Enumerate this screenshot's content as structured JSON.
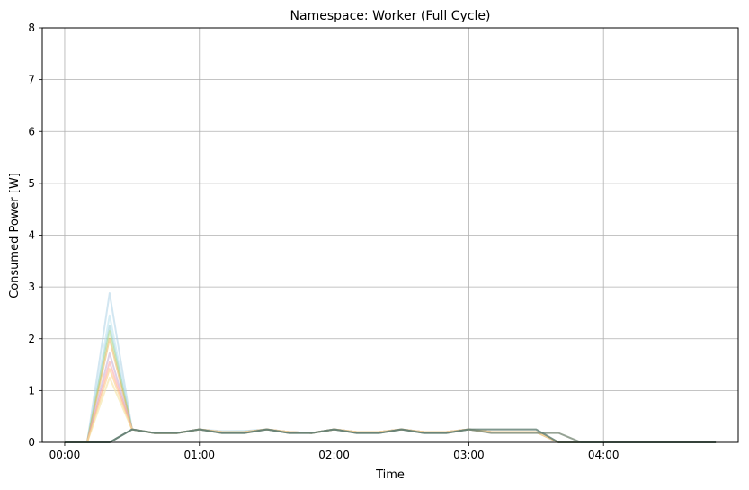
{
  "chart_data": {
    "type": "line",
    "title": "Namespace: Worker (Full Cycle)",
    "xlabel": "Time",
    "ylabel": "Consumed Power [W]",
    "x_unit": "minutes",
    "xlim": [
      -10,
      300
    ],
    "ylim": [
      0,
      8
    ],
    "grid": true,
    "legend": "none",
    "x_ticks": [
      {
        "value": 0,
        "label": "00:00"
      },
      {
        "value": 60,
        "label": "01:00"
      },
      {
        "value": 120,
        "label": "02:00"
      },
      {
        "value": 180,
        "label": "03:00"
      },
      {
        "value": 240,
        "label": "04:00"
      }
    ],
    "y_ticks": [
      {
        "value": 0,
        "label": "0"
      },
      {
        "value": 1,
        "label": "1"
      },
      {
        "value": 2,
        "label": "2"
      },
      {
        "value": 3,
        "label": "3"
      },
      {
        "value": 4,
        "label": "4"
      },
      {
        "value": 5,
        "label": "5"
      },
      {
        "value": 6,
        "label": "6"
      },
      {
        "value": 7,
        "label": "7"
      },
      {
        "value": 8,
        "label": "8"
      }
    ],
    "x": [
      0,
      10,
      20,
      30,
      40,
      50,
      60,
      70,
      80,
      90,
      100,
      110,
      120,
      130,
      140,
      150,
      160,
      170,
      180,
      190,
      200,
      210,
      220,
      230,
      240,
      250,
      260,
      270,
      280,
      290
    ],
    "series": [
      {
        "color": "#a6cee3",
        "opacity": 0.5,
        "values": [
          0,
          0,
          2.88,
          0.25,
          0.18,
          0.18,
          0.25,
          0.22,
          0.22,
          0.25,
          0.2,
          0.18,
          0.25,
          0.2,
          0.2,
          0.25,
          0.2,
          0.2,
          0.25,
          0.2,
          0.2,
          0.2,
          0.0,
          0,
          0,
          0,
          0,
          0,
          0,
          0
        ]
      },
      {
        "color": "#b2dfee",
        "opacity": 0.5,
        "values": [
          0,
          0,
          2.45,
          0.25,
          0.18,
          0.18,
          0.25,
          0.2,
          0.22,
          0.25,
          0.2,
          0.18,
          0.25,
          0.2,
          0.2,
          0.25,
          0.2,
          0.2,
          0.25,
          0.2,
          0.2,
          0.2,
          0.0,
          0,
          0,
          0,
          0,
          0,
          0,
          0
        ]
      },
      {
        "color": "#8fc9d6",
        "opacity": 0.5,
        "values": [
          0,
          0,
          2.25,
          0.25,
          0.18,
          0.18,
          0.25,
          0.2,
          0.2,
          0.25,
          0.2,
          0.18,
          0.25,
          0.2,
          0.2,
          0.25,
          0.2,
          0.2,
          0.25,
          0.2,
          0.2,
          0.2,
          0.0,
          0,
          0,
          0,
          0,
          0,
          0,
          0
        ]
      },
      {
        "color": "#b2df8a",
        "opacity": 0.55,
        "values": [
          0,
          0,
          2.15,
          0.25,
          0.18,
          0.18,
          0.25,
          0.2,
          0.2,
          0.25,
          0.2,
          0.18,
          0.25,
          0.2,
          0.2,
          0.25,
          0.2,
          0.2,
          0.25,
          0.2,
          0.2,
          0.2,
          0.0,
          0,
          0,
          0,
          0,
          0,
          0,
          0
        ]
      },
      {
        "color": "#e7a33e",
        "opacity": 0.45,
        "values": [
          0,
          0,
          2.0,
          0.25,
          0.18,
          0.18,
          0.25,
          0.2,
          0.2,
          0.25,
          0.2,
          0.18,
          0.25,
          0.2,
          0.2,
          0.25,
          0.2,
          0.2,
          0.25,
          0.2,
          0.2,
          0.2,
          0.0,
          0,
          0,
          0,
          0,
          0,
          0,
          0
        ]
      },
      {
        "color": "#cab2d6",
        "opacity": 0.6,
        "values": [
          0,
          0,
          1.72,
          0.25,
          0.18,
          0.18,
          0.25,
          0.2,
          0.2,
          0.25,
          0.2,
          0.18,
          0.25,
          0.2,
          0.2,
          0.25,
          0.2,
          0.2,
          0.25,
          0.2,
          0.2,
          0.2,
          0.0,
          0,
          0,
          0,
          0,
          0,
          0,
          0
        ]
      },
      {
        "color": "#fb9a99",
        "opacity": 0.5,
        "values": [
          0,
          0,
          1.55,
          0.25,
          0.18,
          0.18,
          0.25,
          0.2,
          0.2,
          0.25,
          0.2,
          0.18,
          0.25,
          0.2,
          0.2,
          0.25,
          0.2,
          0.2,
          0.25,
          0.2,
          0.2,
          0.2,
          0.0,
          0,
          0,
          0,
          0,
          0,
          0,
          0
        ]
      },
      {
        "color": "#fdbf6f",
        "opacity": 0.5,
        "values": [
          0,
          0,
          1.42,
          0.25,
          0.18,
          0.18,
          0.25,
          0.2,
          0.2,
          0.25,
          0.2,
          0.18,
          0.25,
          0.2,
          0.2,
          0.25,
          0.2,
          0.2,
          0.25,
          0.2,
          0.2,
          0.2,
          0.0,
          0,
          0,
          0,
          0,
          0,
          0,
          0
        ]
      },
      {
        "color": "#f4e3a1",
        "opacity": 0.6,
        "values": [
          0,
          0,
          1.25,
          0.25,
          0.18,
          0.18,
          0.25,
          0.2,
          0.2,
          0.25,
          0.2,
          0.18,
          0.25,
          0.2,
          0.2,
          0.25,
          0.2,
          0.2,
          0.25,
          0.2,
          0.2,
          0.2,
          0.0,
          0,
          0,
          0,
          0,
          0,
          0,
          0
        ]
      },
      {
        "color": "#7c8c7a",
        "opacity": 0.8,
        "values": [
          0,
          0,
          0,
          0.25,
          0.18,
          0.18,
          0.25,
          0.18,
          0.18,
          0.25,
          0.18,
          0.18,
          0.25,
          0.18,
          0.18,
          0.25,
          0.18,
          0.18,
          0.25,
          0.18,
          0.18,
          0.18,
          0.18,
          0,
          0,
          0,
          0,
          0,
          0,
          0
        ]
      },
      {
        "color": "#5f7d72",
        "opacity": 0.8,
        "values": [
          0,
          0,
          0,
          0.25,
          0.18,
          0.18,
          0.25,
          0.18,
          0.18,
          0.25,
          0.18,
          0.18,
          0.25,
          0.18,
          0.18,
          0.25,
          0.18,
          0.18,
          0.25,
          0.25,
          0.25,
          0.25,
          0,
          0,
          0,
          0,
          0,
          0,
          0,
          0
        ]
      }
    ]
  }
}
